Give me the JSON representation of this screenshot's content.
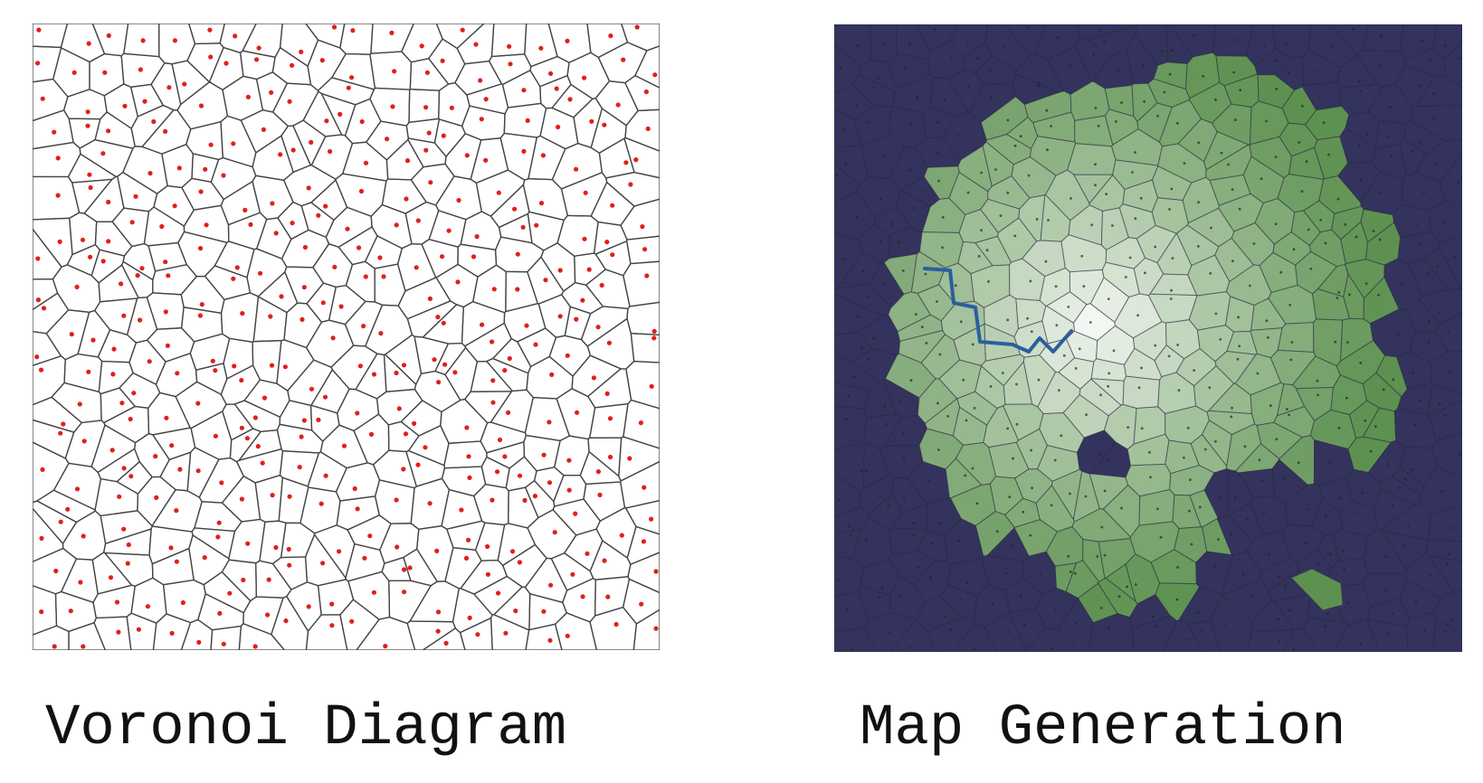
{
  "figures": [
    {
      "caption": "Voronoi Diagram",
      "site_color": "#e0201a",
      "edge_color": "#444444",
      "background": "#ffffff"
    },
    {
      "caption": "Map Generation",
      "ocean_color": "#34335e",
      "land_low_color": "#5d9150",
      "land_high_color": "#f7faf6",
      "river_color": "#2a5f9e",
      "edge_color": "#2a2a40",
      "site_color": "#1e2a1e"
    }
  ]
}
